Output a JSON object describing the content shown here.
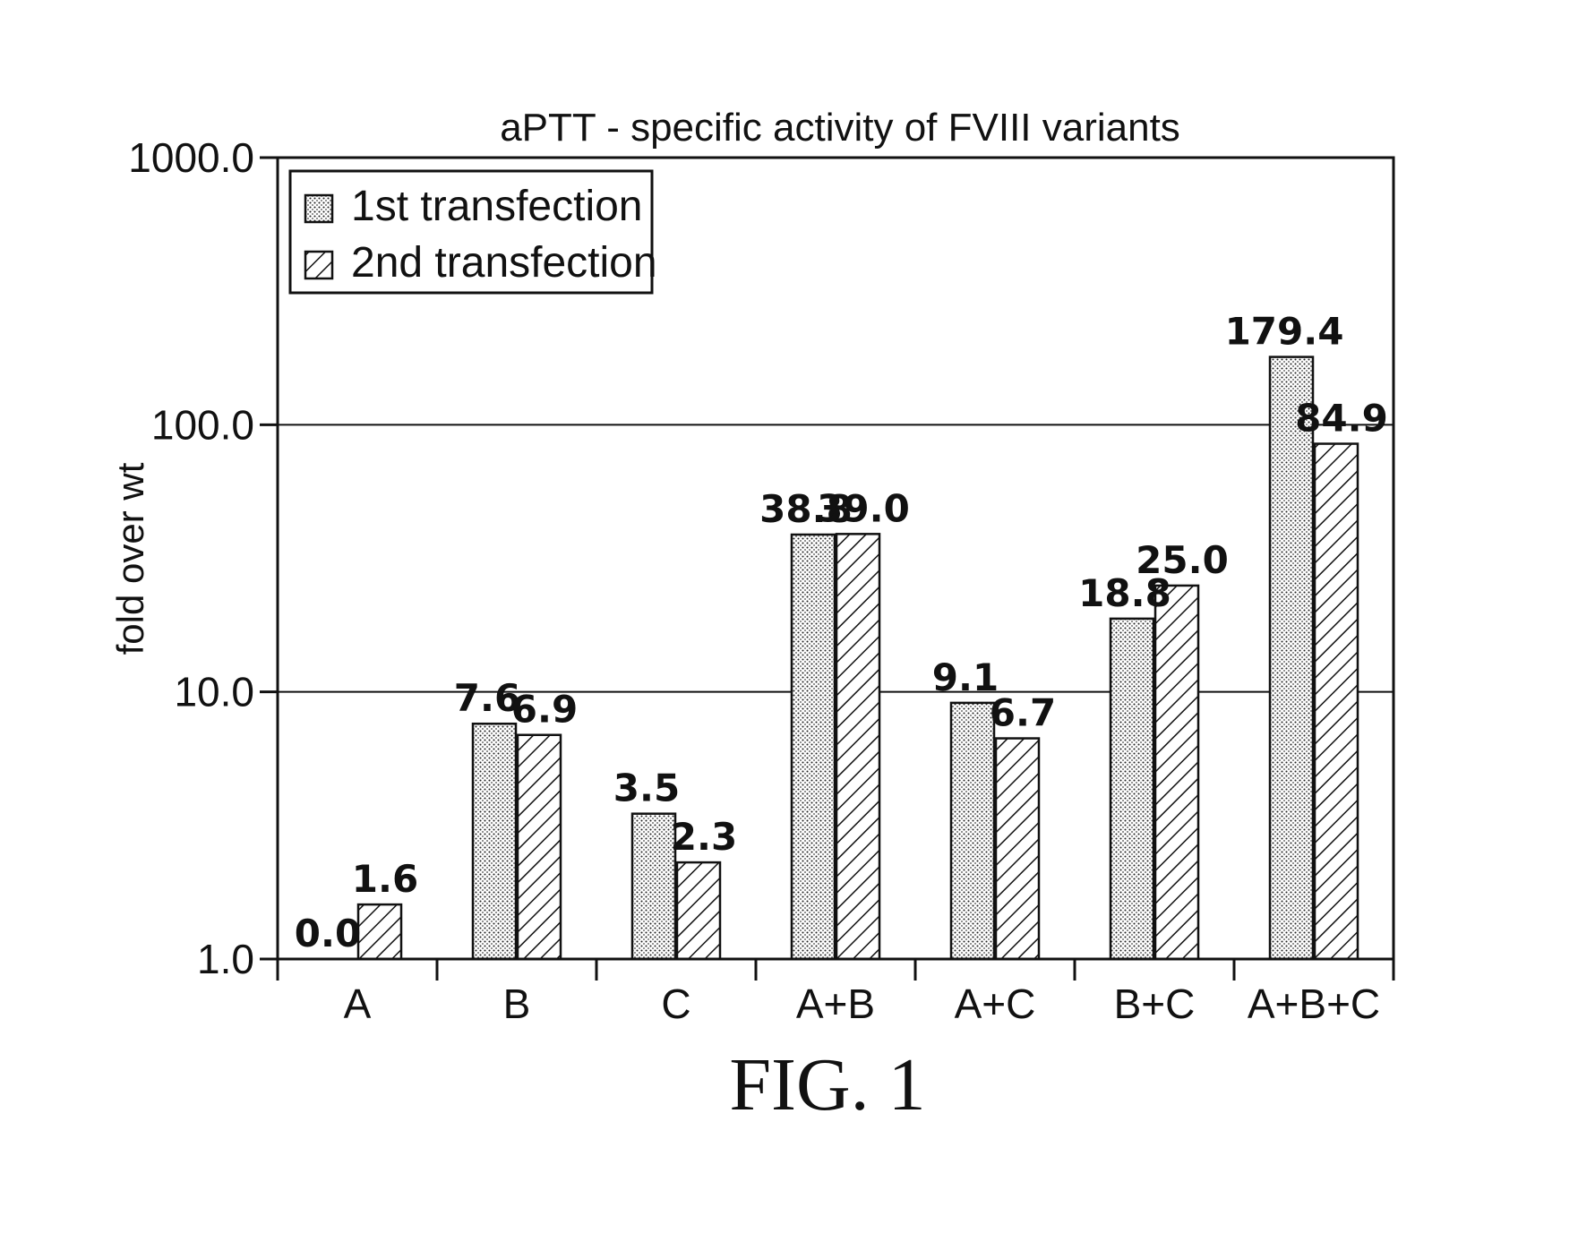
{
  "chart_data": {
    "type": "bar",
    "title": "aPTT - specific activity of FVIII variants",
    "xlabel": "",
    "ylabel": "fold over wt",
    "yscale": "log",
    "ylim": [
      1.0,
      1000.0
    ],
    "yticks": [
      "1.0",
      "10.0",
      "100.0",
      "1000.0"
    ],
    "grid": "horizontal at major ticks",
    "legend_position": "top-left",
    "categories": [
      "A",
      "B",
      "C",
      "A+B",
      "A+C",
      "B+C",
      "A+B+C"
    ],
    "series": [
      {
        "name": "1st transfection",
        "pattern": "dotted",
        "values": [
          0.0,
          7.6,
          3.5,
          38.8,
          9.1,
          18.8,
          179.4
        ],
        "labels": [
          "0.0",
          "7.6",
          "3.5",
          "38.8",
          "9.1",
          "18.8",
          "179.4"
        ]
      },
      {
        "name": "2nd transfection",
        "pattern": "hatched",
        "values": [
          1.6,
          6.9,
          2.3,
          39.0,
          6.7,
          25.0,
          84.9
        ],
        "labels": [
          "1.6",
          "6.9",
          "2.3",
          "39.0",
          "6.7",
          "25.0",
          "84.9"
        ]
      }
    ]
  },
  "caption": "FIG. 1",
  "colors": {
    "ink": "#111111",
    "background": "#ffffff"
  }
}
